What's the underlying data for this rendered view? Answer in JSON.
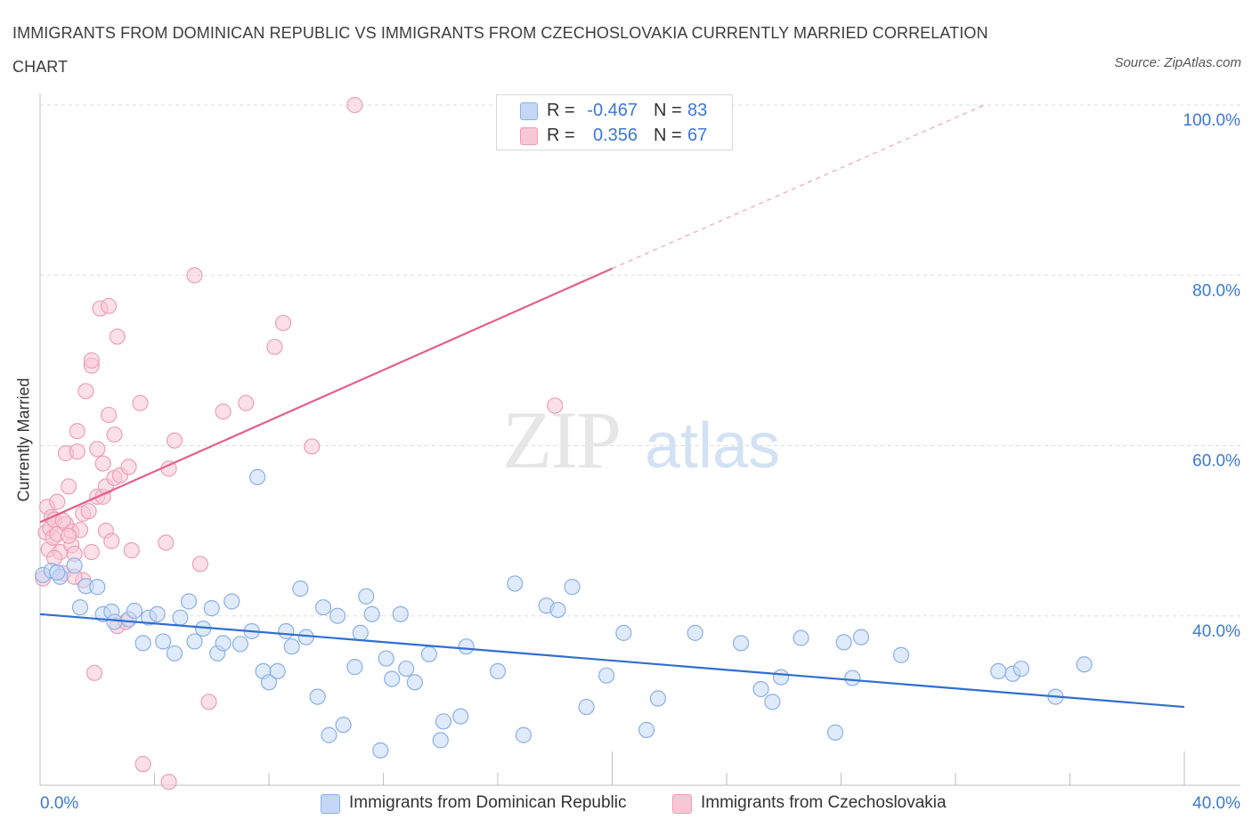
{
  "header": {
    "title": "IMMIGRANTS FROM DOMINICAN REPUBLIC VS IMMIGRANTS FROM CZECHOSLOVAKIA CURRENTLY MARRIED CORRELATION CHART",
    "source": "Source: ZipAtlas.com"
  },
  "watermark": {
    "zip": "ZIP",
    "atlas": "atlas"
  },
  "legend": {
    "rows": [
      {
        "r_label": "R =",
        "r_value": "-0.467",
        "n_label": "N =",
        "n_value": "83"
      },
      {
        "r_label": "R =",
        "r_value": "0.356",
        "n_label": "N =",
        "n_value": "67"
      }
    ]
  },
  "colors": {
    "blue_fill": "#c4d8f5",
    "blue_stroke": "#8ab0e6",
    "blue_line": "#2f6fd0",
    "pink_fill": "#f7c7d6",
    "pink_stroke": "#ec9fb8",
    "pink_line": "#e4608a",
    "axis_text": "#3b78d8",
    "grid": "#dddddd"
  },
  "chart_data": {
    "type": "scatter",
    "title": "IMMIGRANTS FROM DOMINICAN REPUBLIC VS IMMIGRANTS FROM CZECHOSLOVAKIA CURRENTLY MARRIED CORRELATION CHART",
    "xlabel": "",
    "ylabel": "Currently Married",
    "xlim": [
      0,
      40
    ],
    "ylim": [
      20,
      100
    ],
    "x_tick_labels": [
      "0.0%",
      "40.0%"
    ],
    "y_ticks": [
      {
        "value": 40,
        "label": "40.0%"
      },
      {
        "value": 60,
        "label": "60.0%"
      },
      {
        "value": 80,
        "label": "80.0%"
      },
      {
        "value": 100,
        "label": "100.0%"
      }
    ],
    "grid": true,
    "legend_position": "bottom",
    "series": [
      {
        "name": "Immigrants from Dominican Republic",
        "color": "#8ab0e6",
        "R": -0.467,
        "N": 83,
        "trend": {
          "x": [
            0,
            40
          ],
          "y": [
            40.2,
            29.3
          ]
        },
        "points": [
          [
            0.1,
            44.8
          ],
          [
            0.4,
            45.3
          ],
          [
            0.7,
            44.6
          ],
          [
            0.6,
            45.1
          ],
          [
            1.2,
            45.9
          ],
          [
            1.6,
            43.5
          ],
          [
            2.0,
            43.4
          ],
          [
            1.4,
            41.0
          ],
          [
            2.2,
            40.2
          ],
          [
            2.5,
            40.5
          ],
          [
            2.6,
            39.3
          ],
          [
            3.1,
            39.6
          ],
          [
            3.3,
            40.6
          ],
          [
            3.6,
            36.8
          ],
          [
            3.8,
            39.8
          ],
          [
            4.1,
            40.2
          ],
          [
            4.3,
            37.0
          ],
          [
            4.7,
            35.6
          ],
          [
            4.9,
            39.8
          ],
          [
            5.2,
            41.7
          ],
          [
            5.4,
            37.0
          ],
          [
            5.7,
            38.5
          ],
          [
            6.0,
            40.9
          ],
          [
            6.2,
            35.6
          ],
          [
            6.4,
            36.8
          ],
          [
            6.7,
            41.7
          ],
          [
            7.0,
            36.7
          ],
          [
            7.4,
            38.2
          ],
          [
            7.6,
            56.3
          ],
          [
            7.8,
            33.5
          ],
          [
            8.0,
            32.2
          ],
          [
            8.3,
            33.5
          ],
          [
            8.6,
            38.2
          ],
          [
            8.8,
            36.4
          ],
          [
            9.1,
            43.2
          ],
          [
            9.3,
            37.5
          ],
          [
            9.7,
            30.5
          ],
          [
            9.9,
            41.0
          ],
          [
            10.1,
            26.0
          ],
          [
            10.4,
            40.0
          ],
          [
            10.6,
            27.2
          ],
          [
            11.0,
            34.0
          ],
          [
            11.2,
            38.0
          ],
          [
            11.4,
            42.3
          ],
          [
            11.6,
            40.2
          ],
          [
            11.9,
            24.2
          ],
          [
            12.1,
            35.0
          ],
          [
            12.3,
            32.6
          ],
          [
            12.6,
            40.2
          ],
          [
            12.8,
            33.8
          ],
          [
            13.1,
            32.2
          ],
          [
            13.6,
            35.5
          ],
          [
            14.0,
            25.4
          ],
          [
            14.1,
            27.6
          ],
          [
            14.7,
            28.2
          ],
          [
            14.9,
            36.4
          ],
          [
            16.0,
            33.5
          ],
          [
            16.6,
            43.8
          ],
          [
            16.9,
            26.0
          ],
          [
            17.7,
            41.2
          ],
          [
            18.1,
            40.7
          ],
          [
            18.6,
            43.4
          ],
          [
            19.1,
            29.3
          ],
          [
            19.8,
            33.0
          ],
          [
            20.4,
            38.0
          ],
          [
            21.2,
            26.6
          ],
          [
            21.6,
            30.3
          ],
          [
            22.9,
            38.0
          ],
          [
            24.5,
            36.8
          ],
          [
            25.2,
            31.4
          ],
          [
            25.6,
            29.9
          ],
          [
            25.9,
            32.8
          ],
          [
            26.6,
            37.4
          ],
          [
            27.8,
            26.3
          ],
          [
            28.1,
            36.9
          ],
          [
            28.4,
            32.7
          ],
          [
            28.7,
            37.5
          ],
          [
            30.1,
            35.4
          ],
          [
            33.5,
            33.5
          ],
          [
            34.0,
            33.2
          ],
          [
            34.3,
            33.8
          ],
          [
            35.5,
            30.5
          ],
          [
            36.5,
            34.3
          ]
        ]
      },
      {
        "name": "Immigrants from Czechoslovakia",
        "color": "#ec9fb8",
        "R": 0.356,
        "N": 67,
        "trend": {
          "x": [
            0,
            20
          ],
          "y": [
            51.0,
            80.8
          ]
        },
        "trend_extension": {
          "x": [
            20,
            33
          ],
          "y": [
            80.8,
            100
          ]
        },
        "points": [
          [
            0.1,
            44.4
          ],
          [
            0.2,
            49.8
          ],
          [
            0.25,
            52.8
          ],
          [
            0.3,
            47.8
          ],
          [
            0.35,
            50.3
          ],
          [
            0.4,
            51.6
          ],
          [
            0.45,
            49.2
          ],
          [
            0.5,
            51.3
          ],
          [
            0.6,
            53.4
          ],
          [
            0.6,
            49.6
          ],
          [
            0.7,
            47.5
          ],
          [
            0.8,
            45.0
          ],
          [
            0.9,
            59.1
          ],
          [
            0.9,
            50.8
          ],
          [
            1.0,
            55.2
          ],
          [
            1.1,
            49.9
          ],
          [
            1.1,
            48.3
          ],
          [
            1.2,
            47.3
          ],
          [
            1.3,
            61.7
          ],
          [
            1.3,
            59.3
          ],
          [
            1.4,
            50.1
          ],
          [
            1.5,
            44.2
          ],
          [
            1.5,
            52.0
          ],
          [
            1.6,
            66.4
          ],
          [
            1.8,
            69.4
          ],
          [
            1.8,
            70.0
          ],
          [
            2.0,
            54.0
          ],
          [
            2.0,
            59.6
          ],
          [
            2.1,
            76.1
          ],
          [
            2.2,
            57.9
          ],
          [
            2.2,
            54.0
          ],
          [
            2.3,
            55.2
          ],
          [
            2.3,
            50.0
          ],
          [
            2.4,
            76.4
          ],
          [
            2.4,
            63.6
          ],
          [
            2.5,
            48.8
          ],
          [
            2.6,
            61.3
          ],
          [
            2.6,
            56.2
          ],
          [
            2.7,
            72.8
          ],
          [
            2.8,
            56.5
          ],
          [
            3.1,
            57.5
          ],
          [
            3.2,
            47.7
          ],
          [
            3.5,
            65.0
          ],
          [
            4.4,
            48.6
          ],
          [
            4.5,
            57.3
          ],
          [
            4.7,
            60.6
          ],
          [
            5.4,
            80.0
          ],
          [
            5.6,
            46.1
          ],
          [
            5.9,
            29.9
          ],
          [
            6.4,
            64.0
          ],
          [
            7.2,
            65.0
          ],
          [
            8.2,
            71.6
          ],
          [
            8.5,
            74.4
          ],
          [
            9.5,
            59.9
          ],
          [
            11.0,
            100.0
          ],
          [
            18.0,
            64.7
          ],
          [
            1.9,
            33.3
          ],
          [
            2.7,
            38.8
          ],
          [
            3.6,
            22.6
          ],
          [
            4.5,
            20.5
          ],
          [
            1.7,
            52.3
          ],
          [
            0.8,
            51.2
          ],
          [
            1.0,
            49.4
          ],
          [
            1.2,
            44.6
          ],
          [
            0.5,
            46.8
          ],
          [
            1.8,
            47.5
          ],
          [
            3.0,
            39.3
          ]
        ]
      }
    ]
  }
}
